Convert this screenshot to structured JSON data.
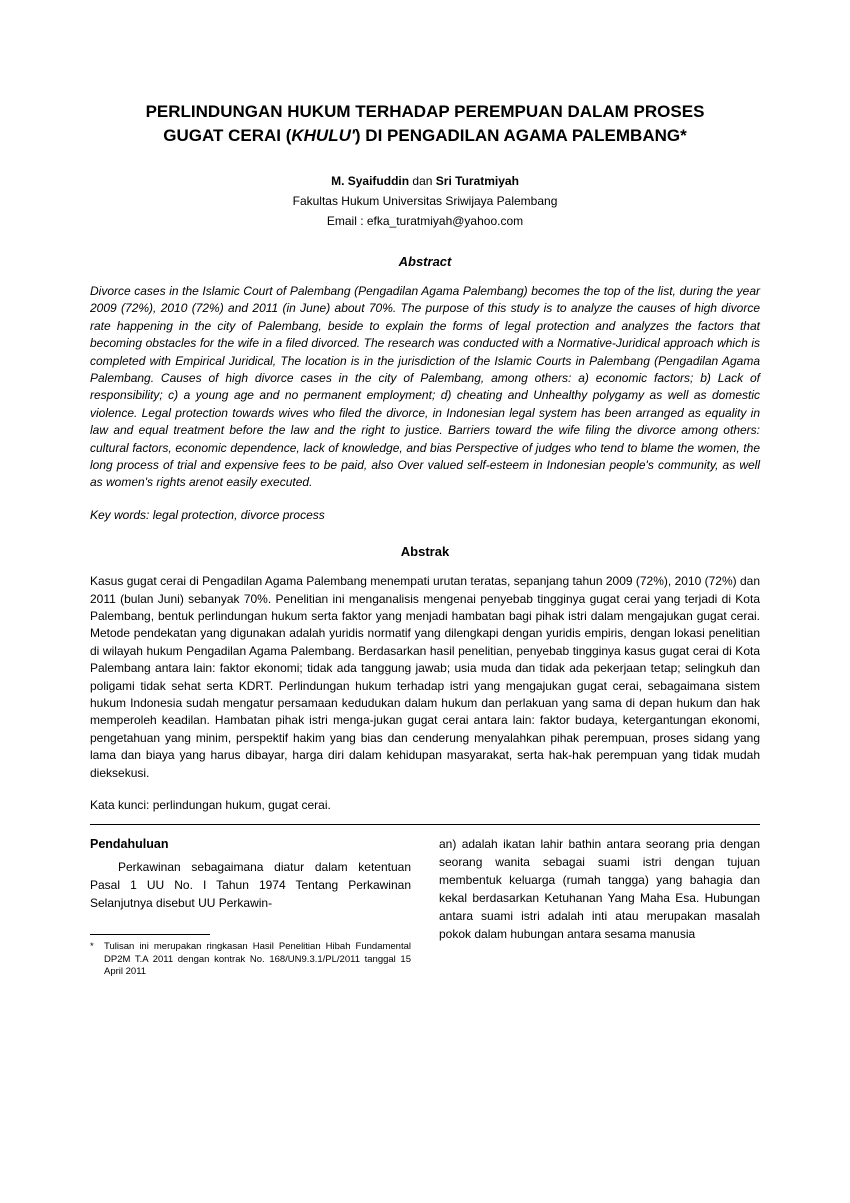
{
  "title_line1": "PERLINDUNGAN HUKUM TERHADAP PEREMPUAN DALAM PROSES",
  "title_line2_pre": "GUGAT CERAI (",
  "title_line2_italic": "KHULU'",
  "title_line2_post": ") DI PENGADILAN AGAMA PALEMBANG",
  "title_asterisk": "*",
  "authors_pre": "M. Syaifuddin",
  "authors_conj": " dan ",
  "authors_post": "Sri Turatmiyah",
  "affiliation": "Fakultas Hukum Universitas Sriwijaya Palembang",
  "email": "Email : efka_turatmiyah@yahoo.com",
  "abstract_heading_en": "Abstract",
  "abstract_en": "Divorce cases in the Islamic Court of Palembang (Pengadilan Agama Palembang) becomes the top of the list, during the year 2009 (72%), 2010 (72%) and 2011 (in June) about 70%. The purpose of this study is to analyze the causes of high divorce rate happening in the city of Palembang, beside to explain the forms of legal protection and analyzes the factors that becoming obstacles for the wife in a filed divorced. The research was conducted with a Normative-Juridical approach which is completed with Empirical Juridical, The location is in the jurisdiction of the Islamic Courts in Palembang (Pengadilan Agama Palembang. Causes of high divorce cases in the city of Palembang, among others: a) economic factors; b) Lack of responsibility; c) a young age and no permanent employment; d) cheating and Unhealthy polygamy as well as domestic violence. Legal protection towards wives who filed the divorce, in Indonesian legal system has been arranged as equality in law and equal treatment before the law and the right to justice. Barriers toward the wife filing the divorce among others: cultural factors, economic dependence, lack of knowledge, and bias Perspective of judges who tend to blame the women, the long process of trial and expensive fees to be paid, also Over valued self-esteem in Indonesian people's community, as well as women's rights arenot easily executed.",
  "keywords_en": "Key words: legal protection, divorce process",
  "abstract_heading_id": "Abstrak",
  "abstract_id": "Kasus gugat cerai di Pengadilan Agama Palembang menempati urutan teratas, sepanjang tahun 2009 (72%),  2010 (72%) dan 2011 (bulan Juni) sebanyak  70%. Penelitian ini menganalisis mengenai penyebab tingginya gugat cerai yang terjadi di Kota Palembang, bentuk perlindungan hukum serta faktor yang menjadi hambatan bagi pihak istri dalam mengajukan gugat cerai. Metode pendekatan yang digunakan adalah yuridis normatif yang dilengkapi dengan yuridis empiris, dengan lokasi penelitian di wilayah hukum Pengadilan Agama Palembang. Berdasarkan hasil penelitian, penyebab tingginya kasus gugat cerai di Kota Palembang antara lain: faktor ekonomi; tidak ada tanggung jawab; usia muda dan tidak ada pekerjaan tetap; selingkuh dan poligami tidak sehat serta KDRT. Perlindungan hukum terhadap istri yang mengajukan gugat cerai, sebagaimana sistem hukum Indonesia sudah mengatur persamaan kedudukan dalam hukum dan perlakuan yang sama di depan hukum dan hak memperoleh keadilan. Hambatan  pihak istri menga-jukan gugat cerai antara lain: faktor budaya, ketergantungan ekonomi, pengetahuan yang minim, perspektif hakim yang bias dan cenderung menyalahkan pihak perempuan, proses sidang yang lama dan biaya yang harus dibayar, harga diri dalam kehidupan masyarakat, serta hak-hak perempuan yang tidak mudah dieksekusi.",
  "keywords_id": "Kata kunci: perlindungan hukum, gugat cerai.",
  "section_heading": "Pendahuluan",
  "col1_p1": "Perkawinan sebagaimana diatur dalam ketentuan Pasal 1 UU No. I Tahun 1974 Tentang Perkawinan Selanjutnya disebut UU Perkawin-",
  "col2_p1": "an) adalah ikatan lahir bathin antara seorang pria dengan seorang wanita sebagai suami istri dengan tujuan membentuk keluarga (rumah tangga) yang bahagia dan kekal berdasarkan Ketuhanan Yang Maha Esa. Hubungan antara suami istri adalah inti atau merupakan masalah pokok dalam hubungan antara sesama manusia",
  "footnote_marker": "*",
  "footnote_text": "Tulisan ini merupakan ringkasan Hasil Penelitian Hibah Fundamental DP2M T.A 2011 dengan kontrak No. 168/UN9.3.1/PL/2011 tanggal 15 April 2011"
}
